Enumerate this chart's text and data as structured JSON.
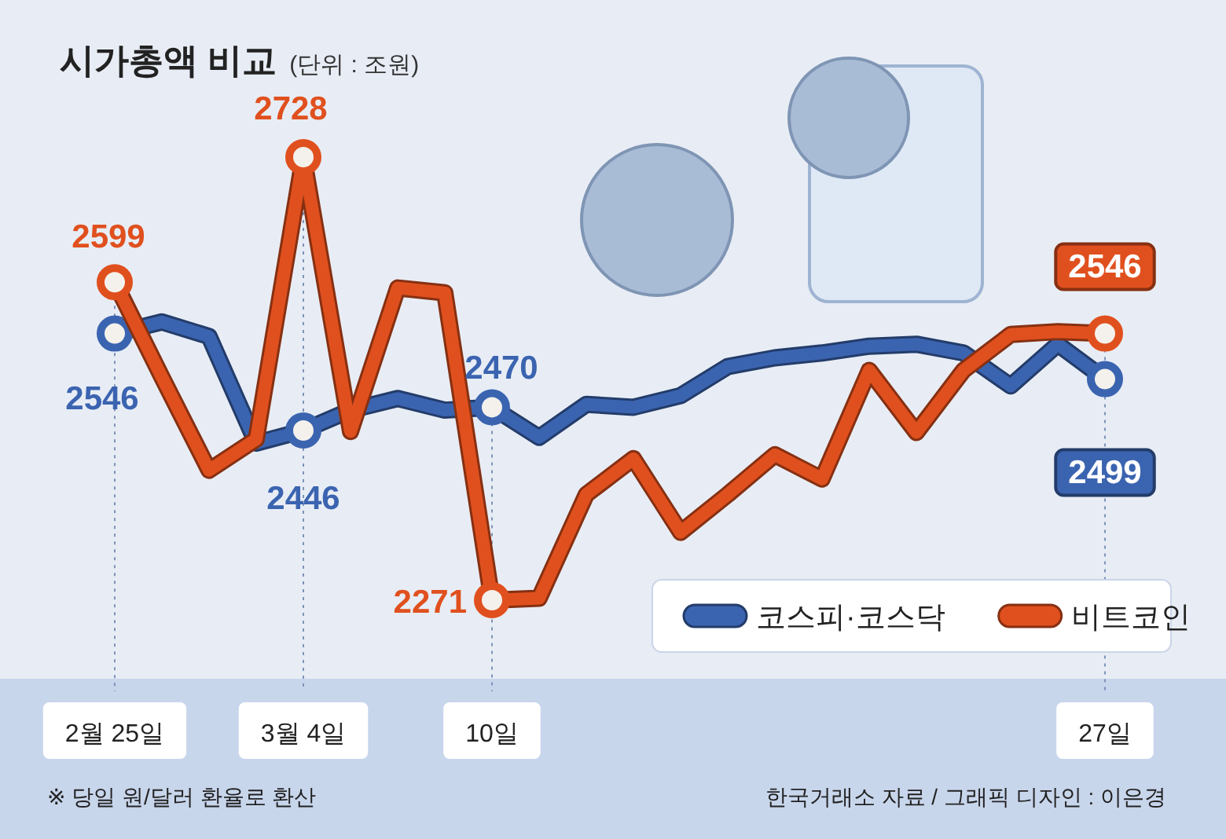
{
  "chart_data": {
    "type": "line",
    "title": "시가총액 비교",
    "subtitle": "(단위 : 조원)",
    "categories": [
      "2월 25일",
      null,
      null,
      null,
      "3월 4일",
      null,
      null,
      null,
      "10일",
      null,
      null,
      null,
      null,
      null,
      null,
      null,
      null,
      null,
      null,
      null,
      null,
      "27일"
    ],
    "series": [
      {
        "name": "코스피·코스닥",
        "color": "#3b64b0",
        "values": [
          2546,
          2558,
          2543,
          2433,
          2446,
          2467,
          2479,
          2467,
          2470,
          2439,
          2473,
          2470,
          2482,
          2512,
          2521,
          2526,
          2533,
          2535,
          2526,
          2492,
          2535,
          2499
        ],
        "value_labels": [
          "2546",
          null,
          null,
          null,
          "2446",
          null,
          null,
          null,
          "2470",
          null,
          null,
          null,
          null,
          null,
          null,
          null,
          null,
          null,
          null,
          null,
          null,
          "2499"
        ]
      },
      {
        "name": "비트코인",
        "color": "#e0501e",
        "values": [
          2599,
          2501,
          2405,
          2437,
          2728,
          2445,
          2593,
          2588,
          2271,
          2273,
          2380,
          2417,
          2341,
          2380,
          2421,
          2396,
          2508,
          2444,
          2508,
          2545,
          2548,
          2546
        ],
        "value_labels": [
          "2599",
          null,
          null,
          null,
          "2728",
          null,
          null,
          null,
          "2271",
          null,
          null,
          null,
          null,
          null,
          null,
          null,
          null,
          null,
          null,
          null,
          null,
          "2546"
        ]
      }
    ],
    "tick_labels": "x",
    "grid": "x",
    "legend": "bottom right",
    "line_style": "solid",
    "annotations": [
      "※ 당일 원/달러 환율로 환산",
      "한국거래소 자료 / 그래픽 디자인 : 이은경"
    ]
  }
}
